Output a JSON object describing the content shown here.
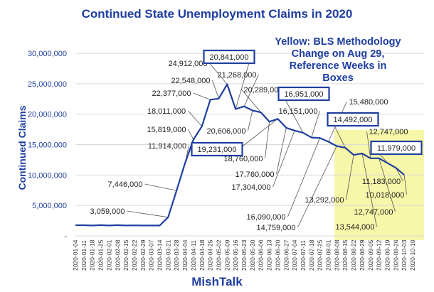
{
  "chart_data": {
    "type": "line",
    "title": "Continued State Unemployment Claims in 2020",
    "ylabel": "Continued  Claims",
    "xlabel": "MishTalk",
    "ylim": [
      0,
      30000000
    ],
    "yticks": [
      {
        "value": 0,
        "label": "-"
      },
      {
        "value": 5000000,
        "label": "5,000,000"
      },
      {
        "value": 10000000,
        "label": "10,000,000"
      },
      {
        "value": 15000000,
        "label": "15,000,000"
      },
      {
        "value": 20000000,
        "label": "20,000,000"
      },
      {
        "value": 25000000,
        "label": "25,000,000"
      },
      {
        "value": 30000000,
        "label": "30,000,000"
      }
    ],
    "grid": true,
    "line_color": "#1f3ea0",
    "highlight_color": "#f6f7a8",
    "annotation": "Yellow: BLS Methodology Change on Aug 29, Reference Weeks in Boxes",
    "x": [
      "2020-01-04",
      "2020-01-11",
      "2020-01-18",
      "2020-01-25",
      "2020-02-01",
      "2020-02-08",
      "2020-02-15",
      "2020-02-22",
      "2020-02-29",
      "2020-03-07",
      "2020-03-14",
      "2020-03-21",
      "2020-03-28",
      "2020-04-04",
      "2020-04-11",
      "2020-04-18",
      "2020-04-25",
      "2020-05-02",
      "2020-05-09",
      "2020-05-16",
      "2020-05-23",
      "2020-05-30",
      "2020-06-06",
      "2020-06-13",
      "2020-06-20",
      "2020-06-27",
      "2020-07-04",
      "2020-07-11",
      "2020-07-18",
      "2020-07-25",
      "2020-08-01",
      "2020-08-08",
      "2020-08-15",
      "2020-08-22",
      "2020-08-29",
      "2020-09-05",
      "2020-09-12",
      "2020-09-19",
      "2020-09-26",
      "2020-10-03",
      "2020-10-10"
    ],
    "values": [
      1750000,
      1750000,
      1700000,
      1760000,
      1700000,
      1760000,
      1710000,
      1730000,
      1700000,
      1700000,
      1700000,
      3059000,
      7446000,
      11914000,
      15819000,
      18011000,
      22377000,
      22548000,
      24912000,
      20841000,
      21268000,
      20606000,
      20289000,
      18760000,
      19231000,
      17760000,
      17304000,
      16951000,
      16151000,
      16090000,
      15480000,
      14759000,
      14492000,
      13292000,
      13544000,
      12747000,
      12747000,
      11979000,
      11183000,
      10018000,
      null
    ],
    "labels": [
      {
        "i": 11,
        "text": "3,059,000",
        "boxed": false
      },
      {
        "i": 12,
        "text": "7,446,000",
        "boxed": false
      },
      {
        "i": 13,
        "text": "11,914,000",
        "boxed": false
      },
      {
        "i": 14,
        "text": "15,819,000",
        "boxed": false
      },
      {
        "i": 15,
        "text": "18,011,000",
        "boxed": false
      },
      {
        "i": 16,
        "text": "22,377,000",
        "boxed": false
      },
      {
        "i": 17,
        "text": "22,548,000",
        "boxed": false
      },
      {
        "i": 18,
        "text": "24,912,000",
        "boxed": false
      },
      {
        "i": 19,
        "text": "20,841,000",
        "boxed": true
      },
      {
        "i": 20,
        "text": "21,268,000",
        "boxed": false
      },
      {
        "i": 21,
        "text": "20,606,000",
        "boxed": false
      },
      {
        "i": 22,
        "text": "20,289,000",
        "boxed": false
      },
      {
        "i": 23,
        "text": "18,760,000",
        "boxed": false
      },
      {
        "i": 24,
        "text": "19,231,000",
        "boxed": true
      },
      {
        "i": 25,
        "text": "17,760,000",
        "boxed": false
      },
      {
        "i": 26,
        "text": "17,304,000",
        "boxed": false
      },
      {
        "i": 27,
        "text": "16,951,000",
        "boxed": true
      },
      {
        "i": 28,
        "text": "16,151,000",
        "boxed": false
      },
      {
        "i": 29,
        "text": "16,090,000",
        "boxed": false
      },
      {
        "i": 30,
        "text": "15,480,000",
        "boxed": false
      },
      {
        "i": 31,
        "text": "14,759,000",
        "boxed": false
      },
      {
        "i": 32,
        "text": "14,492,000",
        "boxed": true
      },
      {
        "i": 33,
        "text": "13,292,000",
        "boxed": false
      },
      {
        "i": 34,
        "text": "13,544,000",
        "boxed": false
      },
      {
        "i": 35,
        "text": "12,747,000",
        "boxed": false
      },
      {
        "i": 36,
        "text": "12,747,000",
        "boxed": false
      },
      {
        "i": 37,
        "text": "11,979,000",
        "boxed": true
      },
      {
        "i": 38,
        "text": "11,183,000",
        "boxed": false
      },
      {
        "i": 39,
        "text": "10,018,000",
        "boxed": false
      }
    ]
  }
}
